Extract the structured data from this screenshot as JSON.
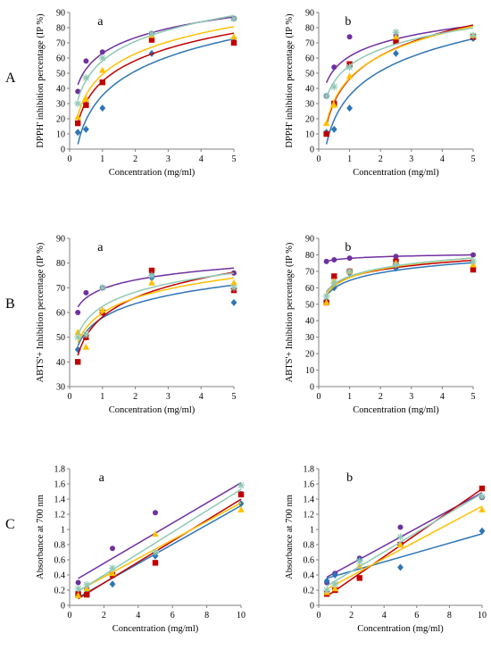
{
  "row_labels": [
    "A",
    "B",
    "C"
  ],
  "chart_data": [
    {
      "type": "scatter",
      "panel": "a",
      "row": "A",
      "xlabel": "Concentration (mg/ml)",
      "ylabel": "DPPH' inhibition percentage (IP %)",
      "xlim": [
        0,
        5
      ],
      "ylim": [
        0,
        90
      ],
      "xticks": [
        0,
        1,
        2,
        3,
        4,
        5
      ],
      "yticks": [
        0,
        10,
        20,
        30,
        40,
        50,
        60,
        70,
        80,
        90
      ],
      "trend": "log",
      "series": [
        {
          "color": "#7030a0",
          "marker": "circle",
          "x": [
            0.25,
            0.5,
            1,
            2.5,
            5
          ],
          "y": [
            38,
            58,
            64,
            76,
            86
          ]
        },
        {
          "color": "#2e75b6",
          "marker": "diamond",
          "x": [
            0.25,
            0.5,
            1,
            2.5,
            5
          ],
          "y": [
            11,
            13,
            27,
            63,
            73
          ]
        },
        {
          "color": "#c00000",
          "marker": "square",
          "x": [
            0.25,
            0.5,
            1,
            2.5,
            5
          ],
          "y": [
            17,
            29,
            44,
            72,
            70
          ]
        },
        {
          "color": "#ffc000",
          "marker": "triangle",
          "x": [
            0.25,
            0.5,
            1,
            2.5,
            5
          ],
          "y": [
            21,
            33,
            52,
            75,
            74
          ]
        },
        {
          "color": "#8fc9b5",
          "marker": "star",
          "x": [
            0.25,
            0.5,
            1,
            2.5,
            5
          ],
          "y": [
            30,
            47,
            60,
            76,
            86
          ]
        }
      ]
    },
    {
      "type": "scatter",
      "panel": "b",
      "row": "A",
      "xlabel": "Concentration (mg/ml)",
      "ylabel": "DPPH' inhibition percentage (IP %)",
      "xlim": [
        0,
        5
      ],
      "ylim": [
        0,
        90
      ],
      "xticks": [
        0,
        1,
        2,
        3,
        4,
        5
      ],
      "yticks": [
        0,
        10,
        20,
        30,
        40,
        50,
        60,
        70,
        80,
        90
      ],
      "trend": "log",
      "series": [
        {
          "color": "#7030a0",
          "marker": "circle",
          "x": [
            0.25,
            0.5,
            1,
            2.5,
            5
          ],
          "y": [
            35,
            54,
            74,
            75,
            73
          ]
        },
        {
          "color": "#2e75b6",
          "marker": "diamond",
          "x": [
            0.25,
            0.5,
            1,
            2.5,
            5
          ],
          "y": [
            11,
            13,
            27,
            63,
            73
          ]
        },
        {
          "color": "#c00000",
          "marker": "square",
          "x": [
            0.25,
            0.5,
            1,
            2.5,
            5
          ],
          "y": [
            10,
            30,
            56,
            71,
            74
          ]
        },
        {
          "color": "#ffc000",
          "marker": "triangle",
          "x": [
            0.25,
            0.5,
            1,
            2.5,
            5
          ],
          "y": [
            17,
            29,
            48,
            74,
            75
          ]
        },
        {
          "color": "#8fc9b5",
          "marker": "star",
          "x": [
            0.25,
            0.5,
            1,
            2.5,
            5
          ],
          "y": [
            35,
            41,
            54,
            77,
            75
          ]
        }
      ]
    },
    {
      "type": "scatter",
      "panel": "a",
      "row": "B",
      "xlabel": "Concentration (mg/ml)",
      "ylabel": "ABTS'+ Inhibition percentage (IP %)",
      "xlim": [
        0,
        5
      ],
      "ylim": [
        30,
        90
      ],
      "xticks": [
        0,
        1,
        2,
        3,
        4,
        5
      ],
      "yticks": [
        30,
        40,
        50,
        60,
        70,
        80,
        90
      ],
      "trend": "log",
      "series": [
        {
          "color": "#7030a0",
          "marker": "circle",
          "x": [
            0.25,
            0.5,
            1,
            2.5,
            5
          ],
          "y": [
            60,
            68,
            70,
            76,
            76
          ]
        },
        {
          "color": "#2e75b6",
          "marker": "diamond",
          "x": [
            0.25,
            0.5,
            1,
            2.5,
            5
          ],
          "y": [
            45,
            50,
            60,
            74,
            64
          ]
        },
        {
          "color": "#c00000",
          "marker": "square",
          "x": [
            0.25,
            0.5,
            1,
            2.5,
            5
          ],
          "y": [
            40,
            50,
            60,
            77,
            69
          ]
        },
        {
          "color": "#ffc000",
          "marker": "triangle",
          "x": [
            0.25,
            0.5,
            1,
            2.5,
            5
          ],
          "y": [
            52,
            46,
            61,
            72,
            72
          ]
        },
        {
          "color": "#8fc9b5",
          "marker": "star",
          "x": [
            0.25,
            0.5,
            1,
            2.5,
            5
          ],
          "y": [
            50,
            51,
            70,
            75,
            70
          ]
        }
      ]
    },
    {
      "type": "scatter",
      "panel": "b",
      "row": "B",
      "xlabel": "Concentration (mg/ml)",
      "ylabel": "ABTS'+ Inhibition percentage (IP %)",
      "xlim": [
        0,
        5
      ],
      "ylim": [
        0,
        90
      ],
      "xticks": [
        0,
        1,
        2,
        3,
        4,
        5
      ],
      "yticks": [
        0,
        10,
        20,
        30,
        40,
        50,
        60,
        70,
        80,
        90
      ],
      "trend": "log",
      "series": [
        {
          "color": "#7030a0",
          "marker": "circle",
          "x": [
            0.25,
            0.5,
            1,
            2.5,
            5
          ],
          "y": [
            76,
            77,
            78,
            79,
            80
          ]
        },
        {
          "color": "#2e75b6",
          "marker": "diamond",
          "x": [
            0.25,
            0.5,
            1,
            2.5,
            5
          ],
          "y": [
            52,
            60,
            69,
            72,
            72
          ]
        },
        {
          "color": "#c00000",
          "marker": "square",
          "x": [
            0.25,
            0.5,
            1,
            2.5,
            5
          ],
          "y": [
            51,
            67,
            70,
            76,
            71
          ]
        },
        {
          "color": "#ffc000",
          "marker": "triangle",
          "x": [
            0.25,
            0.5,
            1,
            2.5,
            5
          ],
          "y": [
            51,
            64,
            70,
            75,
            74
          ]
        },
        {
          "color": "#8fc9b5",
          "marker": "star",
          "x": [
            0.25,
            0.5,
            1,
            2.5,
            5
          ],
          "y": [
            55,
            63,
            70,
            74,
            76
          ]
        }
      ]
    },
    {
      "type": "scatter",
      "panel": "a",
      "row": "C",
      "xlabel": "Concentration (mg/ml)",
      "ylabel": "Absorbance at 700 nm",
      "xlim": [
        0,
        10
      ],
      "ylim": [
        0,
        1.8
      ],
      "xticks": [
        0,
        2,
        4,
        6,
        8,
        10
      ],
      "yticks": [
        0,
        0.2,
        0.4,
        0.6,
        0.8,
        1,
        1.2,
        1.4,
        1.6,
        1.8
      ],
      "trend": "linear",
      "series": [
        {
          "color": "#7030a0",
          "marker": "circle",
          "x": [
            0.5,
            1,
            2.5,
            5,
            10
          ],
          "y": [
            0.3,
            0.22,
            0.75,
            1.22,
            1.47
          ]
        },
        {
          "color": "#2e75b6",
          "marker": "diamond",
          "x": [
            0.5,
            1,
            2.5,
            5,
            10
          ],
          "y": [
            0.15,
            0.2,
            0.28,
            0.65,
            1.34
          ]
        },
        {
          "color": "#c00000",
          "marker": "square",
          "x": [
            0.5,
            1,
            2.5,
            5,
            10
          ],
          "y": [
            0.15,
            0.14,
            0.4,
            0.56,
            1.46
          ]
        },
        {
          "color": "#ffc000",
          "marker": "triangle",
          "x": [
            0.5,
            1,
            2.5,
            5,
            10
          ],
          "y": [
            0.13,
            0.22,
            0.42,
            0.94,
            1.26
          ]
        },
        {
          "color": "#8fc9b5",
          "marker": "star",
          "x": [
            0.5,
            1,
            2.5,
            5,
            10
          ],
          "y": [
            0.22,
            0.27,
            0.49,
            0.7,
            1.58
          ]
        }
      ]
    },
    {
      "type": "scatter",
      "panel": "b",
      "row": "C",
      "xlabel": "Concentration (mg/ml)",
      "ylabel": "Absorbance at 700 nm",
      "xlim": [
        0,
        10
      ],
      "ylim": [
        0,
        1.8
      ],
      "xticks": [
        0,
        2,
        4,
        6,
        8,
        10
      ],
      "yticks": [
        0,
        0.2,
        0.4,
        0.6,
        0.8,
        1,
        1.2,
        1.4,
        1.6,
        1.8
      ],
      "trend": "linear",
      "series": [
        {
          "color": "#7030a0",
          "marker": "circle",
          "x": [
            0.5,
            1,
            2.5,
            5,
            10
          ],
          "y": [
            0.3,
            0.42,
            0.62,
            1.03,
            1.42
          ]
        },
        {
          "color": "#2e75b6",
          "marker": "diamond",
          "x": [
            0.5,
            1,
            2.5,
            5,
            10
          ],
          "y": [
            0.32,
            0.4,
            0.6,
            0.5,
            0.98
          ]
        },
        {
          "color": "#c00000",
          "marker": "square",
          "x": [
            0.5,
            1,
            2.5,
            5,
            10
          ],
          "y": [
            0.15,
            0.2,
            0.36,
            0.8,
            1.54
          ]
        },
        {
          "color": "#ffc000",
          "marker": "triangle",
          "x": [
            0.5,
            1,
            2.5,
            5,
            10
          ],
          "y": [
            0.17,
            0.22,
            0.52,
            0.8,
            1.26
          ]
        },
        {
          "color": "#8fc9b5",
          "marker": "star",
          "x": [
            0.5,
            1,
            2.5,
            5,
            10
          ],
          "y": [
            0.2,
            0.28,
            0.58,
            0.9,
            1.43
          ]
        }
      ]
    }
  ]
}
